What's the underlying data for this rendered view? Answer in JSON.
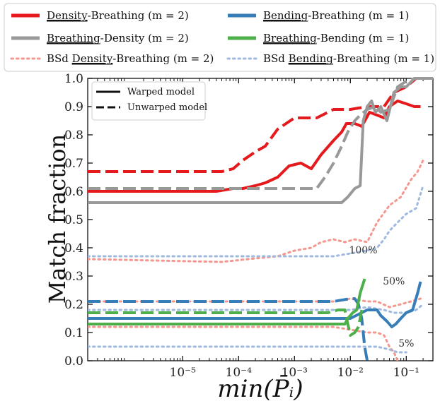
{
  "chart_data": {
    "type": "line",
    "xlabel": "min(P̄ᵢ)",
    "ylabel": "Match fraction",
    "xscale": "log",
    "xlim": [
      2e-07,
      0.3
    ],
    "ylim": [
      0.0,
      1.0
    ],
    "xtick_labels": [
      "10⁻⁵",
      "10⁻⁴",
      "10⁻³",
      "10⁻²",
      "10⁻¹"
    ],
    "xtick_values": [
      1e-05,
      0.0001,
      0.001,
      0.01,
      0.1
    ],
    "ytick_labels": [
      "0.0",
      "0.1",
      "0.2",
      "0.3",
      "0.4",
      "0.5",
      "0.6",
      "0.7",
      "0.8",
      "0.9",
      "1.0"
    ],
    "ytick_values": [
      0.0,
      0.1,
      0.2,
      0.3,
      0.4,
      0.5,
      0.6,
      0.7,
      0.8,
      0.9,
      1.0
    ],
    "legend": {
      "placement": "above",
      "entries": [
        {
          "pre": "",
          "u": "Density",
          "post": "-Breathing (m = 2)",
          "color": "#e41a1c",
          "style": "solid"
        },
        {
          "pre": "",
          "u": "Bending",
          "post": "-Breathing (m = 1)",
          "color": "#377eb8",
          "style": "solid"
        },
        {
          "pre": "",
          "u": "Breathing",
          "post": "-Density (m = 2)",
          "color": "#999999",
          "style": "solid"
        },
        {
          "pre": "",
          "u": "Breathing",
          "post": "-Bending (m = 1)",
          "color": "#4daf4a",
          "style": "solid"
        },
        {
          "pre": "BSd ",
          "u": "Density",
          "post": "-Breathing (m = 2)",
          "color": "#f4978e",
          "style": "dotted"
        },
        {
          "pre": "BSd ",
          "u": "Bending",
          "post": "-Breathing (m = 1)",
          "color": "#9fb9e0",
          "style": "dotted"
        }
      ]
    },
    "inner_legend": {
      "placement": "top-left",
      "entries": [
        {
          "label": "Warped model",
          "style": "solid"
        },
        {
          "label": "Unwarped model",
          "style": "dashed"
        }
      ]
    },
    "annotations": [
      {
        "text": "100%",
        "x": 0.017,
        "y": 0.38
      },
      {
        "text": "50%",
        "x": 0.06,
        "y": 0.27
      },
      {
        "text": "5%",
        "x": 0.1,
        "y": 0.05
      }
    ],
    "series": [
      {
        "name": "Density-Breathing (m = 2)",
        "model": "Warped model",
        "color": "#e41a1c",
        "style": "solid",
        "width": 4,
        "points": [
          [
            2e-07,
            0.6
          ],
          [
            4e-05,
            0.6
          ],
          [
            8e-05,
            0.61
          ],
          [
            0.00012,
            0.61
          ],
          [
            0.0002,
            0.62
          ],
          [
            0.0003,
            0.63
          ],
          [
            0.0005,
            0.65
          ],
          [
            0.0008,
            0.69
          ],
          [
            0.0013,
            0.7
          ],
          [
            0.002,
            0.68
          ],
          [
            0.003,
            0.73
          ],
          [
            0.005,
            0.78
          ],
          [
            0.007,
            0.81
          ],
          [
            0.0085,
            0.84
          ],
          [
            0.012,
            0.84
          ],
          [
            0.016,
            0.83
          ],
          [
            0.022,
            0.88
          ],
          [
            0.03,
            0.87
          ],
          [
            0.04,
            0.86
          ],
          [
            0.05,
            0.9
          ],
          [
            0.07,
            0.92
          ],
          [
            0.1,
            0.91
          ],
          [
            0.14,
            0.9
          ],
          [
            0.18,
            0.9
          ]
        ]
      },
      {
        "name": "Density-Breathing (m = 2)",
        "model": "Unwarped model",
        "color": "#e41a1c",
        "style": "dashed",
        "width": 4,
        "points": [
          [
            2e-07,
            0.67
          ],
          [
            5e-05,
            0.67
          ],
          [
            8e-05,
            0.68
          ],
          [
            0.00012,
            0.71
          ],
          [
            0.0002,
            0.74
          ],
          [
            0.0003,
            0.76
          ],
          [
            0.0005,
            0.82
          ],
          [
            0.001,
            0.86
          ],
          [
            0.0025,
            0.86
          ],
          [
            0.005,
            0.89
          ],
          [
            0.01,
            0.89
          ],
          [
            0.02,
            0.9
          ],
          [
            0.04,
            0.9
          ],
          [
            0.06,
            0.95
          ],
          [
            0.1,
            0.97
          ],
          [
            0.15,
            1.0
          ],
          [
            0.3,
            1.0
          ]
        ]
      },
      {
        "name": "Breathing-Density (m = 2)",
        "model": "Warped model",
        "color": "#999999",
        "style": "solid",
        "width": 4,
        "points": [
          [
            2e-07,
            0.56
          ],
          [
            0.007,
            0.56
          ],
          [
            0.009,
            0.58
          ],
          [
            0.012,
            0.61
          ],
          [
            0.015,
            0.62
          ],
          [
            0.017,
            0.85
          ],
          [
            0.02,
            0.9
          ],
          [
            0.024,
            0.92
          ],
          [
            0.028,
            0.88
          ],
          [
            0.035,
            0.9
          ],
          [
            0.045,
            0.85
          ],
          [
            0.06,
            0.95
          ],
          [
            0.08,
            0.97
          ],
          [
            0.1,
            0.97
          ],
          [
            0.14,
            1.0
          ],
          [
            0.3,
            1.0
          ]
        ]
      },
      {
        "name": "Breathing-Density (m = 2)",
        "model": "Unwarped model",
        "color": "#999999",
        "style": "dashed",
        "width": 4,
        "points": [
          [
            2e-07,
            0.61
          ],
          [
            0.0025,
            0.61
          ],
          [
            0.0035,
            0.65
          ],
          [
            0.005,
            0.7
          ],
          [
            0.007,
            0.76
          ],
          [
            0.009,
            0.81
          ],
          [
            0.012,
            0.85
          ],
          [
            0.015,
            0.87
          ],
          [
            0.02,
            0.89
          ],
          [
            0.028,
            0.9
          ],
          [
            0.035,
            0.88
          ],
          [
            0.05,
            0.89
          ],
          [
            0.07,
            0.97
          ],
          [
            0.1,
            0.99
          ],
          [
            0.15,
            1.0
          ],
          [
            0.3,
            1.0
          ]
        ]
      },
      {
        "name": "BSd Density-Breathing (m = 2)",
        "model": "100%",
        "color": "#f4978e",
        "style": "dotted",
        "width": 3,
        "points": [
          [
            2e-07,
            0.36
          ],
          [
            5e-05,
            0.35
          ],
          [
            0.00015,
            0.36
          ],
          [
            0.0005,
            0.37
          ],
          [
            0.001,
            0.39
          ],
          [
            0.002,
            0.4
          ],
          [
            0.003,
            0.42
          ],
          [
            0.005,
            0.43
          ],
          [
            0.008,
            0.42
          ],
          [
            0.012,
            0.43
          ],
          [
            0.02,
            0.42
          ],
          [
            0.03,
            0.49
          ],
          [
            0.05,
            0.55
          ],
          [
            0.08,
            0.58
          ],
          [
            0.12,
            0.64
          ],
          [
            0.16,
            0.67
          ],
          [
            0.2,
            0.71
          ]
        ]
      },
      {
        "name": "BSd Density-Breathing (m = 2)",
        "model": "50%",
        "color": "#f4978e",
        "style": "dotted",
        "width": 3,
        "points": [
          [
            2e-07,
            0.21
          ],
          [
            0.001,
            0.21
          ],
          [
            0.005,
            0.21
          ],
          [
            0.01,
            0.22
          ],
          [
            0.02,
            0.21
          ],
          [
            0.03,
            0.21
          ],
          [
            0.05,
            0.19
          ],
          [
            0.08,
            0.2
          ],
          [
            0.12,
            0.21
          ],
          [
            0.18,
            0.22
          ]
        ]
      },
      {
        "name": "BSd Density-Breathing (m = 2)",
        "model": "5%",
        "color": "#f4978e",
        "style": "dotted",
        "width": 3,
        "points": [
          [
            2e-07,
            0.12
          ],
          [
            0.001,
            0.12
          ],
          [
            0.005,
            0.12
          ],
          [
            0.01,
            0.11
          ],
          [
            0.02,
            0.1
          ],
          [
            0.03,
            0.1
          ],
          [
            0.04,
            0.09
          ],
          [
            0.05,
            0.05
          ],
          [
            0.06,
            0.03
          ],
          [
            0.07,
            0.0
          ]
        ]
      },
      {
        "name": "Bending-Breathing (m = 1)",
        "model": "Warped model",
        "color": "#377eb8",
        "style": "solid",
        "width": 4,
        "points": [
          [
            2e-07,
            0.15
          ],
          [
            0.01,
            0.15
          ],
          [
            0.02,
            0.18
          ],
          [
            0.03,
            0.18
          ],
          [
            0.035,
            0.16
          ],
          [
            0.045,
            0.14
          ],
          [
            0.055,
            0.12
          ],
          [
            0.065,
            0.13
          ],
          [
            0.08,
            0.15
          ],
          [
            0.1,
            0.17
          ],
          [
            0.13,
            0.18
          ],
          [
            0.16,
            0.24
          ],
          [
            0.18,
            0.28
          ]
        ]
      },
      {
        "name": "Bending-Breathing (m = 1)",
        "model": "Unwarped model",
        "color": "#377eb8",
        "style": "dashed",
        "width": 4,
        "points": [
          [
            2e-07,
            0.21
          ],
          [
            0.005,
            0.21
          ],
          [
            0.01,
            0.22
          ],
          [
            0.012,
            0.22
          ],
          [
            0.014,
            0.2
          ],
          [
            0.016,
            0.15
          ],
          [
            0.018,
            0.05
          ],
          [
            0.02,
            0.0
          ]
        ]
      },
      {
        "name": "Breathing-Bending (m = 1)",
        "model": "Warped model",
        "color": "#4daf4a",
        "style": "solid",
        "width": 4,
        "points": [
          [
            2e-07,
            0.13
          ],
          [
            0.008,
            0.13
          ],
          [
            0.009,
            0.15
          ],
          [
            0.011,
            0.17
          ],
          [
            0.013,
            0.18
          ],
          [
            0.015,
            0.24
          ],
          [
            0.018,
            0.29
          ]
        ]
      },
      {
        "name": "Breathing-Bending (m = 1)",
        "model": "Unwarped model",
        "color": "#4daf4a",
        "style": "dashed",
        "width": 4,
        "points": [
          [
            2e-07,
            0.17
          ],
          [
            0.004,
            0.17
          ],
          [
            0.006,
            0.18
          ],
          [
            0.008,
            0.18
          ],
          [
            0.009,
            0.13
          ],
          [
            0.01,
            0.09
          ],
          [
            0.012,
            0.1
          ],
          [
            0.014,
            0.12
          ],
          [
            0.016,
            0.18
          ]
        ]
      },
      {
        "name": "BSd Bending-Breathing (m = 1)",
        "model": "100%",
        "color": "#9fb9e0",
        "style": "dotted",
        "width": 3,
        "points": [
          [
            2e-07,
            0.37
          ],
          [
            0.001,
            0.37
          ],
          [
            0.005,
            0.37
          ],
          [
            0.01,
            0.38
          ],
          [
            0.02,
            0.39
          ],
          [
            0.03,
            0.4
          ],
          [
            0.04,
            0.43
          ],
          [
            0.05,
            0.46
          ],
          [
            0.07,
            0.49
          ],
          [
            0.1,
            0.52
          ],
          [
            0.15,
            0.54
          ],
          [
            0.2,
            0.62
          ]
        ]
      },
      {
        "name": "BSd Bending-Breathing (m = 1)",
        "model": "50%",
        "color": "#9fb9e0",
        "style": "dotted",
        "width": 3,
        "points": [
          [
            2e-07,
            0.18
          ],
          [
            0.001,
            0.18
          ],
          [
            0.01,
            0.18
          ],
          [
            0.02,
            0.19
          ],
          [
            0.04,
            0.18
          ],
          [
            0.06,
            0.17
          ],
          [
            0.1,
            0.17
          ],
          [
            0.15,
            0.18
          ],
          [
            0.2,
            0.2
          ]
        ]
      },
      {
        "name": "BSd Bending-Breathing (m = 1)",
        "model": "5%",
        "color": "#9fb9e0",
        "style": "dotted",
        "width": 3,
        "points": [
          [
            2e-07,
            0.05
          ],
          [
            0.005,
            0.05
          ],
          [
            0.015,
            0.05
          ],
          [
            0.03,
            0.05
          ],
          [
            0.05,
            0.04
          ],
          [
            0.07,
            0.03
          ],
          [
            0.1,
            0.03
          ]
        ]
      }
    ]
  }
}
